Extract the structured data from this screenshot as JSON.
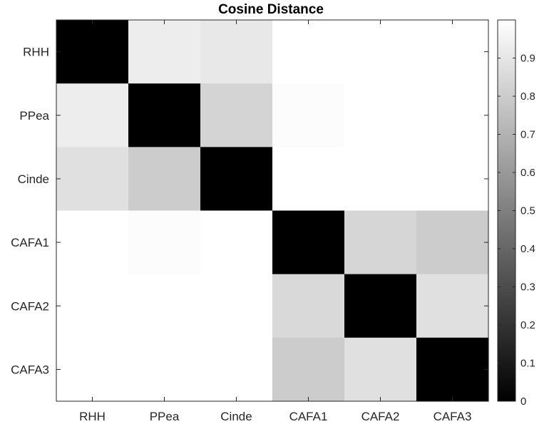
{
  "chart_data": {
    "type": "heatmap",
    "title": "Cosine Distance",
    "categories": [
      "RHH",
      "PPea",
      "Cinde",
      "CAFA1",
      "CAFA2",
      "CAFA3"
    ],
    "values": [
      [
        0.0,
        0.93,
        0.91,
        1.0,
        1.0,
        1.0
      ],
      [
        0.93,
        0.0,
        0.83,
        0.99,
        1.0,
        1.0
      ],
      [
        0.88,
        0.8,
        0.0,
        1.0,
        1.0,
        1.0
      ],
      [
        1.0,
        0.99,
        1.0,
        0.0,
        0.84,
        0.8
      ],
      [
        1.0,
        1.0,
        1.0,
        0.85,
        0.0,
        0.88
      ],
      [
        1.0,
        1.0,
        1.0,
        0.8,
        0.88,
        0.0
      ]
    ],
    "colorbar": {
      "min": 0,
      "max": 1,
      "ticks": [
        0,
        0.1,
        0.2,
        0.3,
        0.4,
        0.5,
        0.6,
        0.7,
        0.8,
        0.9
      ],
      "tick_labels": [
        "0",
        "0.1",
        "0.2",
        "0.3",
        "0.4",
        "0.5",
        "0.6",
        "0.7",
        "0.8",
        "0.9"
      ],
      "colormap": "gray",
      "placement": "right"
    }
  }
}
